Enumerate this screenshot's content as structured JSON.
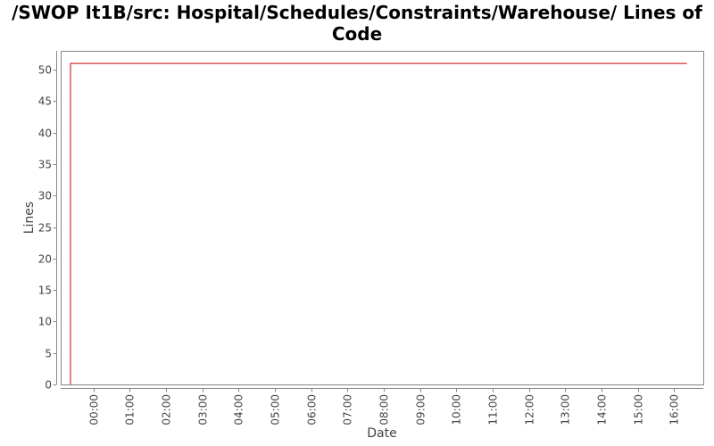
{
  "chart_data": {
    "type": "line",
    "title": "/SWOP It1B/src: Hospital/Schedules/Constraints/Warehouse/ Lines of Code",
    "xlabel": "Date",
    "ylabel": "Lines",
    "x_ticks": [
      "00:00",
      "01:00",
      "02:00",
      "03:00",
      "04:00",
      "05:00",
      "06:00",
      "07:00",
      "08:00",
      "09:00",
      "10:00",
      "11:00",
      "12:00",
      "13:00",
      "14:00",
      "15:00",
      "16:00"
    ],
    "y_ticks": [
      0,
      5,
      10,
      15,
      20,
      25,
      30,
      35,
      40,
      45,
      50
    ],
    "xlim_hours": [
      -0.9,
      16.8
    ],
    "ylim": [
      0,
      53
    ],
    "grid": false,
    "legend": "none",
    "series": [
      {
        "color": "#cc0000",
        "points": [
          {
            "x_hours": -0.63,
            "y": 0
          },
          {
            "x_hours": -0.63,
            "y": 51
          },
          {
            "x_hours": 16.35,
            "y": 51
          }
        ]
      }
    ]
  }
}
